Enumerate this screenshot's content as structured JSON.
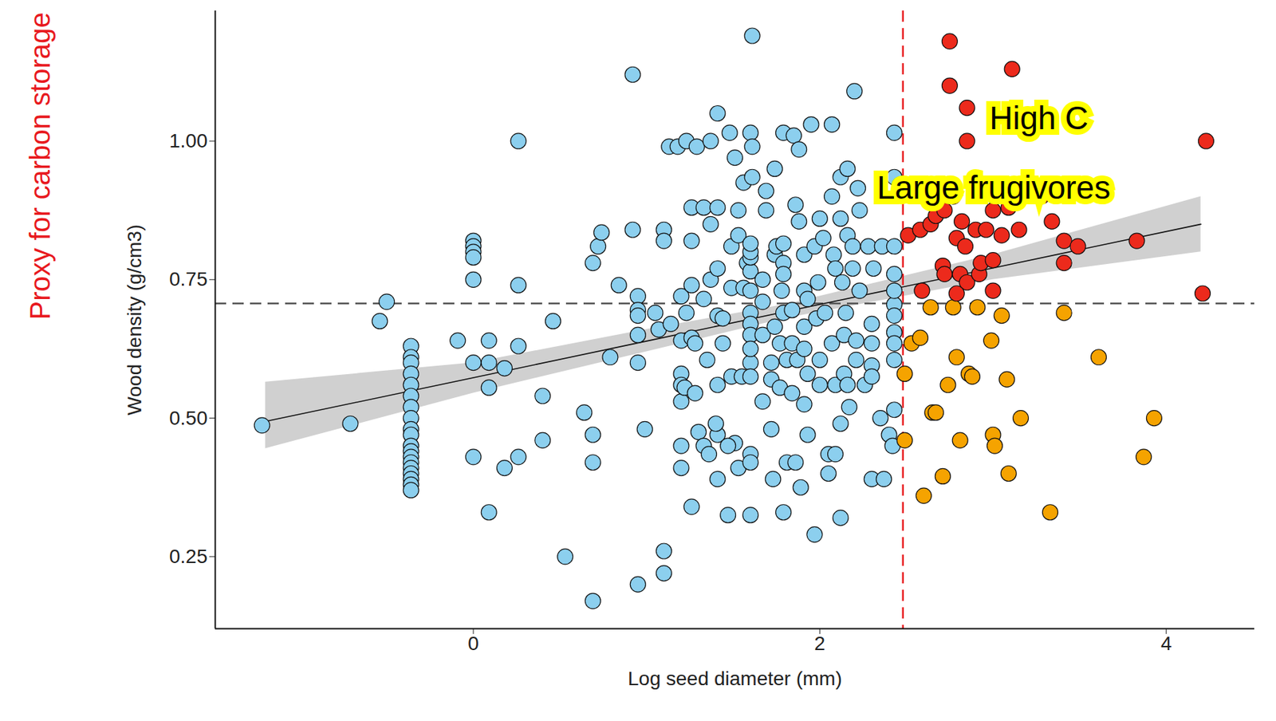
{
  "chart_data": {
    "type": "scatter",
    "xlabel": "Log seed diameter (mm)",
    "ylabel": "Wood density (g/cm3)",
    "side_label": {
      "text": "Proxy for carbon storage",
      "color": "#e8191e"
    },
    "xlim": [
      -1.49,
      4.51
    ],
    "ylim": [
      0.12,
      1.235
    ],
    "xticks": [
      0,
      2,
      4
    ],
    "yticks": [
      0.25,
      {
        "value": 0.5,
        "label": "0.50"
      },
      0.75,
      {
        "value": 1,
        "label": "1.00"
      }
    ],
    "grid": false,
    "marker": "circle",
    "series": [
      {
        "color": "#8ccfee",
        "x": [
          -1.22,
          -0.71,
          -0.5,
          -0.54,
          -0.36,
          -0.36,
          -0.36,
          -0.36,
          -0.36,
          -0.36,
          -0.36,
          -0.36,
          -0.36,
          -0.36,
          -0.36,
          -0.36,
          -0.36,
          -0.36,
          -0.36,
          -0.36,
          -0.36,
          -0.36,
          -0.36,
          0,
          0,
          0,
          0,
          0,
          0,
          -0.09,
          0.26,
          0.26,
          0.09,
          0.09,
          0.09,
          0.09,
          0.18,
          0,
          0.18,
          0.26,
          0.26,
          0.4,
          0.4,
          0.46,
          0.53,
          0.64,
          0.69,
          0.69,
          0.69,
          0.69,
          0.72,
          0.74,
          0.79,
          0.84,
          0.92,
          0.92,
          0.95,
          0.95,
          0.95,
          0.95,
          0.95,
          0.99,
          0.95,
          1.1,
          1.1,
          1.07,
          1.1,
          1.1,
          1.13,
          1.18,
          1.23,
          1.29,
          1.2,
          1.2,
          1.2,
          1.2,
          1.2,
          1.2,
          1.2,
          1.22,
          1.26,
          1.26,
          1.26,
          1.26,
          1.26,
          1.3,
          1.33,
          1.37,
          1.37,
          1.37,
          1.41,
          1.41,
          1.41,
          1.41,
          1.41,
          1.41,
          1.4,
          1.41,
          1.47,
          1.48,
          1.49,
          1.49,
          1.49,
          1.51,
          1.51,
          1.53,
          1.55,
          1.56,
          1.53,
          1.53,
          1.56,
          1.58,
          1.6,
          1.6,
          1.6,
          1.6,
          1.6,
          1.6,
          1.6,
          1.6,
          1.6,
          1.6,
          1.6,
          1.6,
          1.6,
          1.6,
          1.6,
          1.61,
          1.61,
          1.61,
          1.67,
          1.67,
          1.67,
          1.67,
          1.69,
          1.69,
          1.72,
          1.72,
          1.72,
          1.73,
          1.74,
          1.74,
          1.74,
          1.75,
          1.77,
          1.77,
          1.78,
          1.79,
          1.79,
          1.79,
          1.79,
          1.79,
          1.79,
          1.81,
          1.81,
          1.84,
          1.84,
          1.84,
          1.85,
          1.86,
          1.86,
          1.87,
          1.88,
          1.88,
          1.89,
          1.91,
          1.91,
          1.91,
          1.91,
          1.91,
          1.93,
          1.93,
          1.93,
          1.95,
          1.97,
          1.97,
          1.98,
          1.99,
          2.0,
          2.0,
          2.0,
          2.02,
          2.03,
          2.05,
          2.05,
          2.07,
          2.07,
          2.07,
          2.08,
          2.09,
          2.09,
          2.09,
          2.12,
          2.12,
          2.12,
          2.12,
          2.13,
          2.14,
          2.14,
          2.15,
          2.16,
          2.16,
          2.16,
          2.17,
          2.19,
          2.19,
          2.2,
          2.21,
          2.21,
          2.22,
          2.23,
          2.23,
          2.26,
          2.28,
          2.3,
          2.3,
          2.3,
          2.3,
          2.3,
          2.31,
          2.35,
          2.36,
          2.37,
          2.4,
          2.42,
          2.43,
          2.43,
          2.43,
          2.43,
          2.43,
          2.43,
          2.43,
          2.43,
          2.43,
          2.43,
          2.43,
          1.28,
          1.35,
          1.44,
          1.44,
          1.33,
          1.23,
          1.05,
          1.14,
          1.28,
          1.33,
          1.36,
          1.47
        ],
        "values": [
          0.487,
          0.49,
          0.71,
          0.675,
          0.63,
          0.61,
          0.6,
          0.58,
          0.56,
          0.54,
          0.52,
          0.5,
          0.48,
          0.47,
          0.45,
          0.44,
          0.43,
          0.42,
          0.41,
          0.4,
          0.39,
          0.38,
          0.37,
          0.82,
          0.81,
          0.8,
          0.79,
          0.75,
          0.43,
          0.64,
          1.0,
          0.74,
          0.64,
          0.6,
          0.555,
          0.33,
          0.59,
          0.6,
          0.41,
          0.43,
          0.63,
          0.54,
          0.46,
          0.675,
          0.25,
          0.51,
          0.47,
          0.42,
          0.17,
          0.78,
          0.81,
          0.835,
          0.61,
          0.74,
          0.84,
          1.12,
          0.72,
          0.695,
          0.685,
          0.6,
          0.65,
          0.48,
          0.2,
          0.22,
          0.26,
          0.66,
          0.84,
          0.82,
          0.99,
          0.99,
          1.0,
          0.99,
          0.72,
          0.64,
          0.58,
          0.56,
          0.53,
          0.45,
          0.41,
          0.555,
          0.74,
          0.82,
          0.88,
          0.645,
          0.34,
          0.475,
          0.88,
          0.75,
          0.85,
          1.0,
          1.05,
          0.88,
          0.77,
          0.685,
          0.47,
          0.39,
          0.49,
          0.56,
          0.325,
          1.015,
          0.735,
          0.81,
          0.575,
          0.455,
          0.97,
          0.41,
          0.575,
          0.735,
          0.83,
          0.875,
          0.925,
          0.78,
          0.6,
          0.73,
          0.765,
          0.79,
          0.8,
          0.815,
          0.69,
          0.67,
          0.65,
          0.625,
          0.575,
          0.435,
          0.42,
          0.325,
          1.015,
          0.99,
          1.19,
          0.935,
          0.53,
          0.65,
          0.71,
          0.75,
          0.875,
          0.91,
          0.6,
          0.57,
          0.48,
          0.39,
          0.95,
          0.795,
          0.665,
          0.81,
          0.635,
          0.555,
          0.73,
          1.015,
          0.815,
          0.78,
          0.76,
          0.69,
          0.33,
          0.605,
          0.42,
          0.695,
          0.635,
          0.545,
          1.01,
          0.885,
          0.42,
          0.605,
          0.985,
          0.855,
          0.375,
          0.795,
          0.73,
          0.665,
          0.625,
          0.525,
          0.715,
          0.58,
          0.47,
          1.03,
          0.29,
          0.81,
          0.68,
          0.745,
          0.86,
          0.605,
          0.56,
          0.825,
          0.69,
          0.4,
          0.435,
          1.03,
          0.9,
          0.635,
          0.795,
          0.77,
          0.56,
          0.435,
          0.32,
          0.935,
          0.86,
          0.49,
          0.745,
          0.65,
          0.58,
          0.69,
          0.95,
          0.83,
          0.56,
          0.52,
          0.81,
          0.77,
          1.09,
          0.64,
          0.605,
          0.915,
          0.875,
          0.73,
          0.56,
          0.81,
          0.39,
          0.67,
          0.635,
          0.595,
          0.575,
          0.77,
          0.5,
          0.81,
          0.39,
          0.47,
          0.45,
          1.015,
          0.705,
          0.685,
          0.655,
          0.635,
          0.605,
          0.76,
          0.73,
          0.81,
          0.515,
          0.935,
          0.635,
          0.605,
          0.68,
          0.635,
          0.715,
          0.69,
          0.69,
          0.67,
          0.545,
          0.45,
          0.435,
          0.45
        ]
      },
      {
        "color": "#f5a300",
        "x": [
          2.49,
          2.49,
          2.53,
          2.58,
          2.6,
          2.64,
          2.65,
          2.67,
          2.71,
          2.74,
          2.77,
          2.79,
          2.81,
          2.86,
          2.88,
          2.91,
          2.99,
          3.0,
          3.01,
          3.05,
          3.08,
          3.09,
          3.16,
          3.33,
          3.41,
          3.61,
          3.87,
          3.93
        ],
        "values": [
          0.58,
          0.46,
          0.635,
          0.645,
          0.36,
          0.7,
          0.51,
          0.51,
          0.395,
          0.56,
          0.7,
          0.61,
          0.46,
          0.58,
          0.575,
          0.7,
          0.64,
          0.47,
          0.45,
          0.685,
          0.57,
          0.4,
          0.5,
          0.33,
          0.69,
          0.61,
          0.43,
          0.5
        ]
      },
      {
        "color": "#ec2a1c",
        "x": [
          2.75,
          2.75,
          2.85,
          3.11,
          2.85,
          4.23,
          2.51,
          2.58,
          2.64,
          2.67,
          2.72,
          2.79,
          2.82,
          2.84,
          2.9,
          2.96,
          3.05,
          3.15,
          3.28,
          3.34,
          3.41,
          3.49,
          3.41,
          2.71,
          2.72,
          2.81,
          2.85,
          2.92,
          2.93,
          3.0,
          2.59,
          2.79,
          3.0,
          3.83,
          4.21,
          3.09,
          3.0,
          2.77,
          2.58,
          2.91
        ],
        "values": [
          1.18,
          1.1,
          1.06,
          1.13,
          1.0,
          1.0,
          0.83,
          0.84,
          0.85,
          0.865,
          0.875,
          0.825,
          0.855,
          0.81,
          0.84,
          0.84,
          0.83,
          0.84,
          0.9,
          0.855,
          0.82,
          0.81,
          0.78,
          0.775,
          0.76,
          0.76,
          0.745,
          0.76,
          0.78,
          0.785,
          0.73,
          0.725,
          0.73,
          0.82,
          0.725,
          0.88,
          0.875,
          0.9,
          0.91,
          0.92
        ]
      }
    ],
    "fit": {
      "x": [
        -1.2,
        0,
        1,
        1.8,
        3,
        4.2
      ],
      "values": [
        0.494,
        0.573,
        0.639,
        0.692,
        0.771,
        0.85
      ],
      "lower": [
        0.445,
        0.545,
        0.62,
        0.68,
        0.75,
        0.8
      ],
      "upper": [
        0.565,
        0.6,
        0.66,
        0.705,
        0.795,
        0.9
      ]
    },
    "reference_lines": [
      {
        "axis": "y",
        "value": 0.707,
        "color": "#555555",
        "line_style": "dashed"
      },
      {
        "axis": "x",
        "value": 2.48,
        "color": "#e8191e",
        "line_style": "dashed"
      }
    ],
    "annotations": [
      {
        "text": "High C",
        "x": 2.98,
        "y": 1.04
      },
      {
        "text": "Large frugivores",
        "x": 2.33,
        "y": 0.915
      }
    ]
  }
}
